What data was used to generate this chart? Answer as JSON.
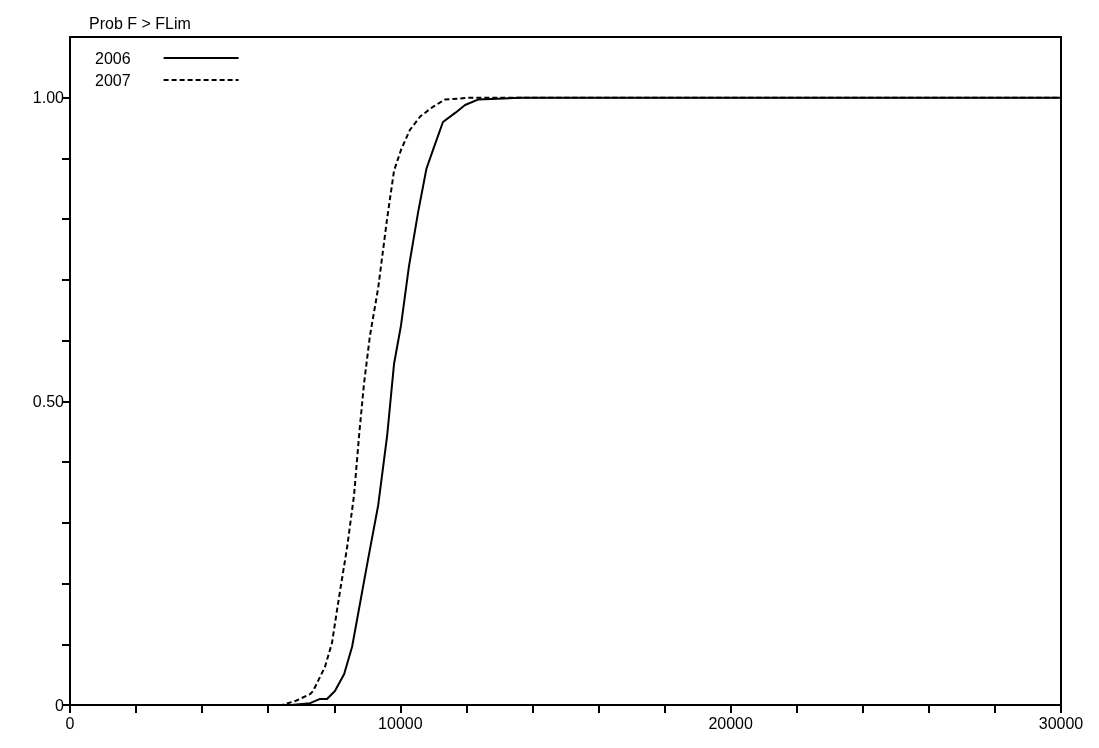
{
  "chart_data": {
    "type": "line",
    "ylabel": "Prob F > FLim",
    "xlim": [
      0,
      30000
    ],
    "ylim": [
      0,
      1.1
    ],
    "xticks": [
      0,
      {
        "value": 2000,
        "label": null
      },
      {
        "value": 4000,
        "label": null
      },
      {
        "value": 6000,
        "label": null
      },
      {
        "value": 8000,
        "label": null
      },
      10000,
      {
        "value": 12000,
        "label": null
      },
      {
        "value": 14000,
        "label": null
      },
      {
        "value": 16000,
        "label": null
      },
      {
        "value": 18000,
        "label": null
      },
      20000,
      {
        "value": 22000,
        "label": null
      },
      {
        "value": 24000,
        "label": null
      },
      {
        "value": 26000,
        "label": null
      },
      {
        "value": 28000,
        "label": null
      },
      30000
    ],
    "yticks": [
      0,
      {
        "value": 0.1,
        "label": null
      },
      {
        "value": 0.2,
        "label": null
      },
      {
        "value": 0.3,
        "label": null
      },
      {
        "value": 0.4,
        "label": null
      },
      {
        "value": 0.5,
        "label": "0.50"
      },
      {
        "value": 0.6,
        "label": null
      },
      {
        "value": 0.7,
        "label": null
      },
      {
        "value": 0.8,
        "label": null
      },
      {
        "value": 0.9,
        "label": null
      },
      {
        "value": 1,
        "label": "1.00"
      }
    ],
    "grid": false,
    "legend": "top left",
    "marker": "none",
    "series": [
      {
        "name": "2006",
        "color": "#000000",
        "line_style": "solid",
        "x": [
          1000,
          6700,
          7270,
          7570,
          7780,
          8020,
          8300,
          8540,
          9020,
          9330,
          9600,
          9810,
          10020,
          10260,
          10540,
          10790,
          10990,
          11290,
          11660,
          11960,
          12350,
          13600,
          30000
        ],
        "values": [
          0,
          0,
          0.003,
          0.01,
          0.01,
          0.023,
          0.051,
          0.096,
          0.239,
          0.329,
          0.443,
          0.562,
          0.625,
          0.722,
          0.812,
          0.883,
          0.914,
          0.96,
          0.975,
          0.988,
          0.997,
          1,
          1
        ]
      },
      {
        "name": "2007",
        "color": "#000000",
        "line_style": "dashed",
        "x": [
          1000,
          6420,
          6840,
          7270,
          7360,
          7720,
          7930,
          8140,
          8390,
          8600,
          8750,
          8900,
          9080,
          9330,
          9600,
          9810,
          10020,
          10290,
          10600,
          10960,
          11350,
          12100,
          30000
        ],
        "values": [
          0,
          0,
          0.007,
          0.018,
          0.023,
          0.063,
          0.102,
          0.176,
          0.26,
          0.346,
          0.443,
          0.529,
          0.608,
          0.687,
          0.801,
          0.88,
          0.914,
          0.947,
          0.969,
          0.984,
          0.997,
          1,
          1
        ]
      }
    ]
  }
}
